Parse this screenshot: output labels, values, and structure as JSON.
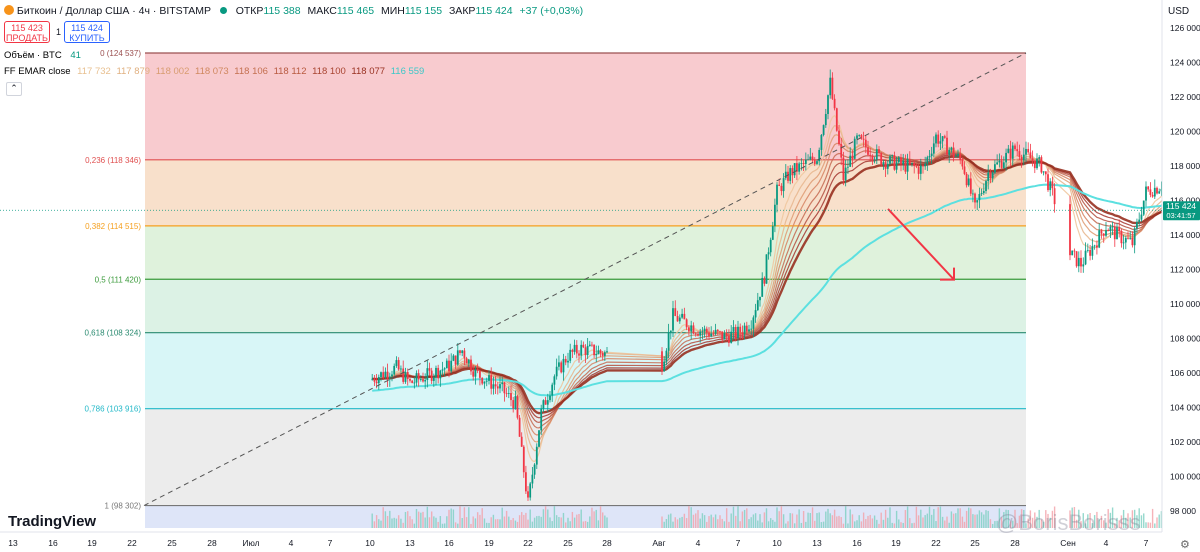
{
  "header": {
    "symbol_title": "Биткоин / Доллар США · 4ч · BITSTAMP",
    "ohlc": [
      {
        "label": "ОТКР",
        "value": "115 388"
      },
      {
        "label": "МАКС",
        "value": "115 465"
      },
      {
        "label": "МИН",
        "value": "115 155"
      },
      {
        "label": "ЗАКР",
        "value": "115 424"
      },
      {
        "label": "",
        "value": "+37 (+0,03%)"
      }
    ],
    "currency": "USD",
    "sell_price": "115 423",
    "sell_label": "ПРОДАТЬ",
    "spread": "1",
    "buy_price": "115 424",
    "buy_label": "КУПИТЬ"
  },
  "legend": {
    "volume_label": "Объём · BTC",
    "volume_value": "41",
    "ema_label": "FF EMAR close",
    "ema_values": [
      "117 732",
      "117 879",
      "118 002",
      "118 073",
      "118 106",
      "118 112",
      "118 100",
      "118 077",
      "116 559"
    ],
    "collapse_icon": "chevron-up-icon"
  },
  "branding": {
    "logo": "TradingView",
    "watermark": "@BorisBorisss"
  },
  "colors": {
    "up": "#089981",
    "down": "#f23645",
    "ema_slow": "#5ce0e0",
    "ema_ribbon": "#b23a2a",
    "fib_0": "#f2a0a8",
    "fib_0236": "#f2c6a0",
    "fib_0382": "#c4e8c0",
    "fib_05": "#bfe8d0",
    "fib_0618": "#b8eef0",
    "fib_0786": "#dddddd",
    "fib_1": "#c8d4f4",
    "arrow": "#f23645"
  },
  "chart_data": {
    "type": "candlestick",
    "symbol": "BTCUSD",
    "timeframe": "4ч",
    "ylim": [
      97000,
      126800
    ],
    "y_ticks": [
      98000,
      100000,
      102000,
      104000,
      106000,
      108000,
      110000,
      112000,
      114000,
      116000,
      118000,
      120000,
      122000,
      124000,
      126000
    ],
    "y_tick_labels": [
      "98 000",
      "100 000",
      "102 000",
      "104 000",
      "106 000",
      "108 000",
      "110 000",
      "112 000",
      "114 000",
      "116 000",
      "118 000",
      "120 000",
      "122 000",
      "124 000",
      "126 000"
    ],
    "x_tick_labels": [
      "13",
      "16",
      "19",
      "22",
      "25",
      "28",
      "Июл",
      "4",
      "7",
      "10",
      "13",
      "16",
      "19",
      "22",
      "25",
      "28",
      "Авг",
      "4",
      "7",
      "10",
      "13",
      "16",
      "19",
      "22",
      "25",
      "28",
      "Сен",
      "4",
      "7"
    ],
    "last_price": "115 424",
    "countdown": "03:41:57",
    "fib_levels": [
      {
        "ratio": 0,
        "price": 124537,
        "label": "0 (124 537)"
      },
      {
        "ratio": 0.236,
        "price": 118346,
        "label": "0,236 (118 346)"
      },
      {
        "ratio": 0.382,
        "price": 114515,
        "label": "0,382 (114 515)"
      },
      {
        "ratio": 0.5,
        "price": 111420,
        "label": "0,5 (111 420)"
      },
      {
        "ratio": 0.618,
        "price": 108324,
        "label": "0,618 (108 324)"
      },
      {
        "ratio": 0.786,
        "price": 103916,
        "label": "0,786 (103 916)"
      },
      {
        "ratio": 1,
        "price": 98302,
        "label": "1 (98 302)"
      }
    ],
    "trend_line": [
      {
        "date": "22",
        "price": 98302
      },
      {
        "date": "25",
        "price": 124537
      }
    ],
    "price_path": [
      {
        "date": "10",
        "price": 105600
      },
      {
        "date": "12",
        "price": 106300
      },
      {
        "date": "13",
        "price": 105400
      },
      {
        "date": "16",
        "price": 106400
      },
      {
        "date": "17",
        "price": 107300
      },
      {
        "date": "18",
        "price": 106000
      },
      {
        "date": "19",
        "price": 105500
      },
      {
        "date": "20",
        "price": 105000
      },
      {
        "date": "21",
        "price": 104200
      },
      {
        "date": "22",
        "price": 98400
      },
      {
        "date": "23",
        "price": 103700
      },
      {
        "date": "24",
        "price": 105800
      },
      {
        "date": "25",
        "price": 107000
      },
      {
        "date": "26",
        "price": 107400
      },
      {
        "date": "28",
        "price": 107100
      },
      {
        "date": "Июл",
        "price": 107300
      },
      {
        "date": "2",
        "price": 106000
      },
      {
        "date": "3",
        "price": 109300
      },
      {
        "date": "4",
        "price": 108500
      },
      {
        "date": "6",
        "price": 108100
      },
      {
        "date": "7",
        "price": 108300
      },
      {
        "date": "8",
        "price": 109000
      },
      {
        "date": "9",
        "price": 111600
      },
      {
        "date": "10",
        "price": 116500
      },
      {
        "date": "11",
        "price": 117600
      },
      {
        "date": "13",
        "price": 118500
      },
      {
        "date": "14",
        "price": 122800
      },
      {
        "date": "15",
        "price": 117300
      },
      {
        "date": "16",
        "price": 119500
      },
      {
        "date": "18",
        "price": 118300
      },
      {
        "date": "21",
        "price": 117800
      },
      {
        "date": "22",
        "price": 119700
      },
      {
        "date": "24",
        "price": 118200
      },
      {
        "date": "25",
        "price": 115500
      },
      {
        "date": "26",
        "price": 117600
      },
      {
        "date": "28",
        "price": 119000
      },
      {
        "date": "30",
        "price": 118000
      },
      {
        "date": "31",
        "price": 116000
      },
      {
        "date": "Авг",
        "price": 114500
      },
      {
        "date": "2",
        "price": 113000
      },
      {
        "date": "3",
        "price": 112300
      },
      {
        "date": "4",
        "price": 114500
      },
      {
        "date": "5",
        "price": 113900
      },
      {
        "date": "6",
        "price": 113500
      },
      {
        "date": "7",
        "price": 116500
      },
      {
        "date": "8",
        "price": 116800
      },
      {
        "date": "10",
        "price": 118500
      },
      {
        "date": "11",
        "price": 120000
      },
      {
        "date": "13",
        "price": 121500
      },
      {
        "date": "14",
        "price": 124200
      },
      {
        "date": "15",
        "price": 118500
      },
      {
        "date": "16",
        "price": 117600
      },
      {
        "date": "17",
        "price": 117800
      },
      {
        "date": "18",
        "price": 115424
      }
    ],
    "forecast_arrow": {
      "from": {
        "date": "18",
        "price": 115500
      },
      "to": {
        "date": "22",
        "price": 111400
      }
    }
  }
}
